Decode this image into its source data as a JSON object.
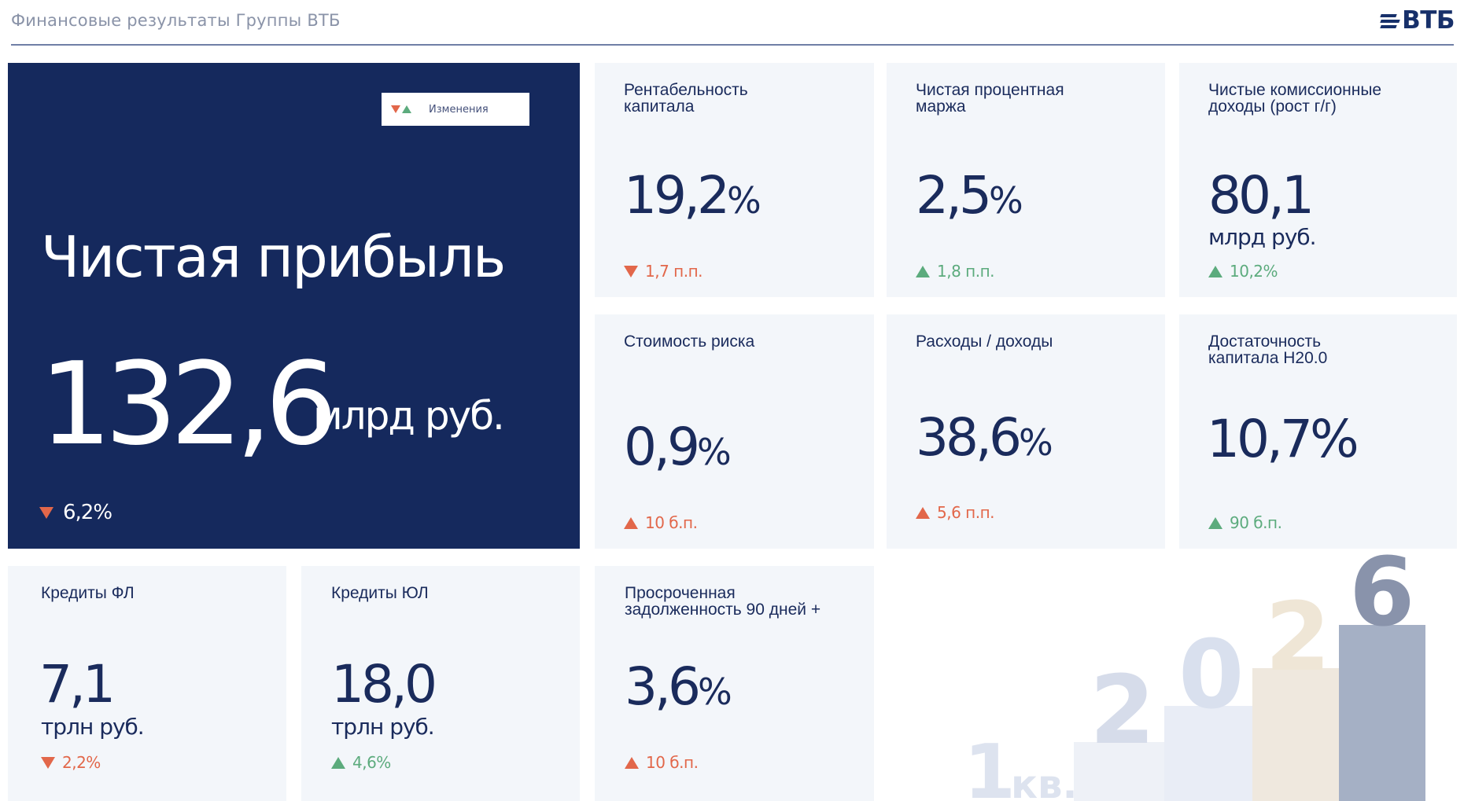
{
  "header": {
    "title": "Финансовые результаты Группы ВТБ",
    "logo_text": "ВТБ"
  },
  "legend": {
    "label": "Изменения"
  },
  "hero": {
    "title": "Чистая прибыль",
    "value": "132,6",
    "unit": "млрд руб.",
    "change": "6,2%",
    "direction": "down"
  },
  "cards": {
    "roe": {
      "title": "Рентабельность\nкапитала",
      "value": "19,2",
      "suffix": "%",
      "change": "1,7 п.п.",
      "direction": "down"
    },
    "nim": {
      "title": "Чистая процентная\nмаржа",
      "value": "2,5",
      "suffix": "%",
      "change": "1,8 п.п.",
      "direction": "up"
    },
    "fees": {
      "title": "Чистые комиссионные\nдоходы (рост г/г)",
      "value": "80,1",
      "unit": "млрд руб.",
      "change": "10,2%",
      "direction": "up"
    },
    "cor": {
      "title": "Стоимость риска",
      "value": "0,9",
      "suffix": "%",
      "change": "10 б.п.",
      "direction": "up-neg"
    },
    "cir": {
      "title": "Расходы / доходы",
      "value": "38,6",
      "suffix": "%",
      "change": "5,6 п.п.",
      "direction": "up-neg"
    },
    "car": {
      "title": "Достаточность\nкапитала Н20.0",
      "value": "10,7%",
      "change": "90 б.п.",
      "direction": "up"
    },
    "retail": {
      "title": "Кредиты ФЛ",
      "value": "7,1",
      "unit": "трлн руб.",
      "change": "2,2%",
      "direction": "down"
    },
    "corporate": {
      "title": "Кредиты ЮЛ",
      "value": "18,0",
      "unit": "трлн руб.",
      "change": "4,6%",
      "direction": "up"
    },
    "npl": {
      "title": "Просроченная\nзадолженность 90 дней +",
      "value": "3,6",
      "suffix": "%",
      "change": "10 б.п.",
      "direction": "up-neg"
    }
  },
  "period": {
    "quarter": "1",
    "quarter_suffix": "кв.",
    "year_digits": [
      "2",
      "0",
      "2",
      "6"
    ]
  },
  "colors": {
    "navy": "#15295d",
    "negative": "#e2674a",
    "positive": "#5cab7d",
    "card_bg": "#f3f6fa"
  }
}
